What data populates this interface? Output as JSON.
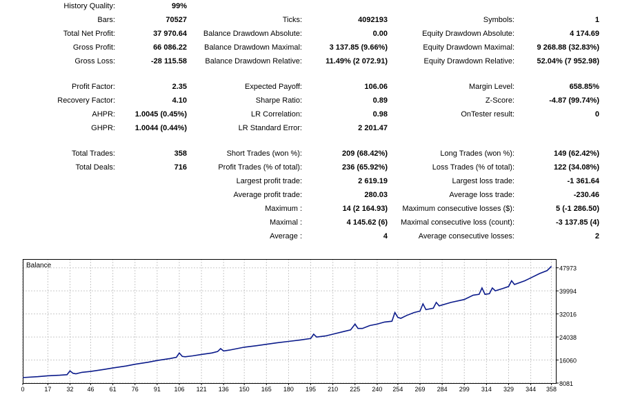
{
  "report": {
    "history_quality": {
      "label": "History Quality:",
      "value": "99%"
    },
    "bars": {
      "label": "Bars:",
      "value": "70527"
    },
    "ticks": {
      "label": "Ticks:",
      "value": "4092193"
    },
    "symbols": {
      "label": "Symbols:",
      "value": "1"
    },
    "total_net_profit": {
      "label": "Total Net Profit:",
      "value": "37 970.64"
    },
    "balance_dd_abs": {
      "label": "Balance Drawdown Absolute:",
      "value": "0.00"
    },
    "equity_dd_abs": {
      "label": "Equity Drawdown Absolute:",
      "value": "4 174.69"
    },
    "gross_profit": {
      "label": "Gross Profit:",
      "value": "66 086.22"
    },
    "balance_dd_max": {
      "label": "Balance Drawdown Maximal:",
      "value": "3 137.85 (9.66%)"
    },
    "equity_dd_max": {
      "label": "Equity Drawdown Maximal:",
      "value": "9 268.88 (32.83%)"
    },
    "gross_loss": {
      "label": "Gross Loss:",
      "value": "-28 115.58"
    },
    "balance_dd_rel": {
      "label": "Balance Drawdown Relative:",
      "value": "11.49% (2 072.91)"
    },
    "equity_dd_rel": {
      "label": "Equity Drawdown Relative:",
      "value": "52.04% (7 952.98)"
    },
    "profit_factor": {
      "label": "Profit Factor:",
      "value": "2.35"
    },
    "expected_payoff": {
      "label": "Expected Payoff:",
      "value": "106.06"
    },
    "margin_level": {
      "label": "Margin Level:",
      "value": "658.85%"
    },
    "recovery_factor": {
      "label": "Recovery Factor:",
      "value": "4.10"
    },
    "sharpe_ratio": {
      "label": "Sharpe Ratio:",
      "value": "0.89"
    },
    "z_score": {
      "label": "Z-Score:",
      "value": "-4.87 (99.74%)"
    },
    "ahpr": {
      "label": "AHPR:",
      "value": "1.0045 (0.45%)"
    },
    "lr_correlation": {
      "label": "LR Correlation:",
      "value": "0.98"
    },
    "ontester": {
      "label": "OnTester result:",
      "value": "0"
    },
    "ghpr": {
      "label": "GHPR:",
      "value": "1.0044 (0.44%)"
    },
    "lr_std_error": {
      "label": "LR Standard Error:",
      "value": "2 201.47"
    },
    "total_trades": {
      "label": "Total Trades:",
      "value": "358"
    },
    "short_trades": {
      "label": "Short Trades (won %):",
      "value": "209 (68.42%)"
    },
    "long_trades": {
      "label": "Long Trades (won %):",
      "value": "149 (62.42%)"
    },
    "total_deals": {
      "label": "Total Deals:",
      "value": "716"
    },
    "profit_trades": {
      "label": "Profit Trades (% of total):",
      "value": "236 (65.92%)"
    },
    "loss_trades": {
      "label": "Loss Trades (% of total):",
      "value": "122 (34.08%)"
    },
    "largest_profit": {
      "label": "Largest profit trade:",
      "value": "2 619.19"
    },
    "largest_loss": {
      "label": "Largest loss trade:",
      "value": "-1 361.64"
    },
    "average_profit": {
      "label": "Average profit trade:",
      "value": "280.03"
    },
    "average_loss": {
      "label": "Average loss trade:",
      "value": "-230.46"
    },
    "maximum": {
      "label": "Maximum :",
      "value": "14 (2 164.93)"
    },
    "max_consec_losses": {
      "label": "Maximum consecutive losses ($):",
      "value": "5 (-1 286.50)"
    },
    "maximal": {
      "label": "Maximal :",
      "value": "4 145.62 (6)"
    },
    "maximal_consec_loss": {
      "label": "Maximal consecutive loss (count):",
      "value": "-3 137.85 (4)"
    },
    "average": {
      "label": "Average :",
      "value": "4"
    },
    "avg_consec_losses": {
      "label": "Average consecutive losses:",
      "value": "2"
    }
  },
  "colors": {
    "line": "#0a1a8a",
    "grid": "#c8c8c8",
    "frame": "#000000"
  },
  "chart_data": {
    "type": "line",
    "title": "Balance",
    "xlabel": "",
    "ylabel": "",
    "grid": true,
    "xlim": [
      0,
      361
    ],
    "ylim": [
      8081,
      51000
    ],
    "x_ticks": [
      0,
      17,
      32,
      46,
      61,
      76,
      91,
      106,
      121,
      136,
      150,
      165,
      180,
      195,
      210,
      225,
      240,
      254,
      269,
      284,
      299,
      314,
      329,
      344,
      358
    ],
    "y_ticks": [
      8081,
      16060,
      24038,
      32016,
      39994,
      47973
    ],
    "series": [
      {
        "name": "",
        "x": [
          0,
          10,
          17,
          25,
          30,
          32,
          34,
          36,
          40,
          46,
          55,
          61,
          70,
          76,
          85,
          91,
          100,
          104,
          106,
          108,
          110,
          115,
          121,
          128,
          132,
          134,
          136,
          140,
          145,
          150,
          158,
          165,
          172,
          180,
          188,
          195,
          197,
          199,
          205,
          210,
          218,
          222,
          225,
          227,
          230,
          235,
          240,
          245,
          250,
          252,
          254,
          256,
          260,
          265,
          269,
          271,
          273,
          278,
          280,
          282,
          290,
          299,
          305,
          309,
          311,
          313,
          316,
          318,
          320,
          325,
          329,
          331,
          333,
          340,
          344,
          350,
          355,
          358
        ],
        "y": [
          10000,
          10300,
          10600,
          10800,
          11000,
          12300,
          11500,
          11300,
          11800,
          12100,
          12800,
          13300,
          14000,
          14600,
          15300,
          15900,
          16600,
          17000,
          18500,
          17300,
          17200,
          17500,
          18000,
          18500,
          19000,
          20000,
          19200,
          19500,
          20000,
          20500,
          21000,
          21500,
          22000,
          22500,
          23000,
          23500,
          25000,
          24000,
          24400,
          25000,
          26000,
          26500,
          28500,
          27000,
          27000,
          28000,
          28500,
          29200,
          29500,
          32500,
          30800,
          30500,
          31500,
          32500,
          33000,
          35500,
          33500,
          34000,
          36000,
          34800,
          36000,
          37000,
          38500,
          38800,
          41000,
          38800,
          39000,
          41000,
          40000,
          40800,
          41500,
          43500,
          42200,
          43500,
          44500,
          46000,
          47000,
          48500
        ]
      }
    ]
  }
}
